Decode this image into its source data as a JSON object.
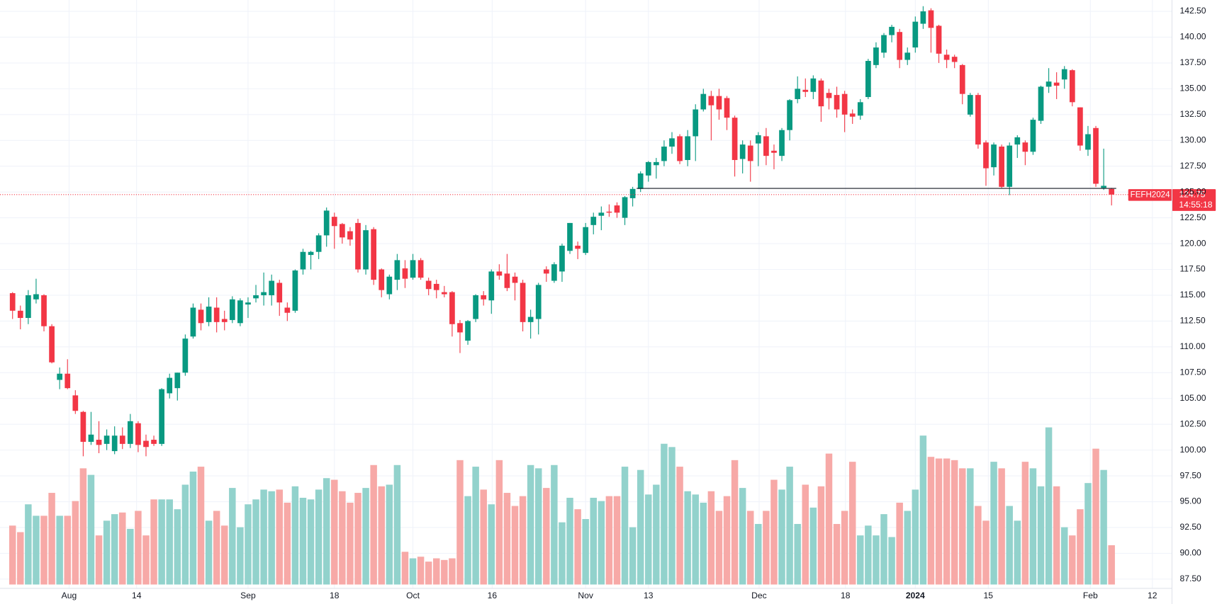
{
  "chart_data": {
    "type": "candlestick",
    "symbol": "FEFH2024",
    "last_price": 124.75,
    "countdown": "14:55:18",
    "up_color": "#089981",
    "down_color": "#f23645",
    "volume_up_color": "#92d2cc",
    "volume_down_color": "#f7a9a7",
    "grid": true,
    "open": [
      115.2,
      113.5,
      112.8,
      114.6,
      115,
      112,
      106.8,
      107.4,
      105.3,
      103.7,
      100.8,
      101,
      100.6,
      99.9,
      101.4,
      100.6,
      102.6,
      100.9,
      101,
      100.6,
      105.5,
      106,
      107.5,
      111,
      113.6,
      112.4,
      113.8,
      112.7,
      112.6,
      112.3,
      114.1,
      114.7,
      115,
      115,
      116.2,
      113.8,
      113.5,
      117.5,
      118.9,
      119.2,
      120.8,
      122.6,
      121.9,
      121.2,
      122,
      117.5,
      121.4,
      117.5,
      115.1,
      116.5,
      117.6,
      116.7,
      118.4,
      116.4,
      116.1,
      115.3,
      115.3,
      112.3,
      110.6,
      112.7,
      115,
      114.5,
      117.3,
      117.1,
      116.8,
      116.2,
      112.4,
      112.7,
      117.5,
      116.4,
      117.3,
      119.3,
      119.8,
      119.1,
      121.8,
      122.7,
      123.1,
      123.7,
      122.5,
      124.4,
      125.3,
      126.6,
      127.6,
      128,
      129.4,
      130.4,
      128.1,
      130.4,
      133,
      134.3,
      134.3,
      134.1,
      132.2,
      128.2,
      129.5,
      129.7,
      130.4,
      129,
      128.5,
      131,
      134,
      134.9,
      134.7,
      135.8,
      134.6,
      134.4,
      134.5,
      132.6,
      132.4,
      134.2,
      137.3,
      138.5,
      140.2,
      140.5,
      137.8,
      139,
      141.3,
      142.6,
      141.1,
      138.3,
      138.1,
      137.3,
      132.5,
      134.4,
      129.8,
      127.4,
      129.4,
      125.5,
      129.6,
      129.8,
      128.9,
      131.9,
      135.2,
      135.6,
      135.9,
      136.8,
      133.2,
      129.1,
      131.2,
      125.4,
      125.3
    ],
    "high": [
      115.3,
      114,
      115.5,
      116.6,
      115.1,
      112.2,
      108,
      108.8,
      105.8,
      103.8,
      103.7,
      102.8,
      102,
      102.3,
      102.2,
      103.5,
      102.8,
      101.5,
      101.4,
      106,
      107.4,
      107.5,
      111.2,
      114.2,
      114.2,
      114.8,
      114.8,
      113.5,
      114.9,
      114.7,
      114.8,
      116,
      117.2,
      117,
      116.5,
      114.3,
      117.5,
      119.5,
      119.3,
      121,
      123.5,
      123,
      122,
      121.6,
      122.4,
      121.8,
      121.6,
      117.6,
      117,
      119,
      118.4,
      119,
      118.6,
      116.7,
      116.5,
      115.9,
      115.4,
      112.6,
      112.6,
      115.1,
      115.4,
      117.5,
      118,
      119,
      117.2,
      116.5,
      113.6,
      116.2,
      117.8,
      118.2,
      120,
      122,
      120.2,
      122,
      123,
      123.6,
      123.8,
      124,
      124.6,
      125.5,
      127,
      128,
      128.3,
      130,
      130.8,
      130.6,
      131,
      133.5,
      135,
      134.8,
      135,
      134.3,
      132.4,
      130,
      130,
      130.8,
      131.2,
      129.6,
      131.2,
      134,
      136.2,
      136,
      136.3,
      136,
      135,
      135.2,
      134.8,
      133,
      134,
      137.9,
      139.5,
      140.4,
      141.2,
      140.8,
      139,
      142,
      143,
      142.8,
      141.2,
      138.8,
      138.3,
      137.4,
      134.6,
      134.6,
      130,
      129.8,
      129.6,
      129.8,
      130.5,
      130,
      132.2,
      135.3,
      137,
      136.6,
      137.2,
      136.9,
      133.2,
      131.4,
      131.4,
      129.2,
      125.4
    ],
    "low": [
      112.7,
      111.7,
      112.2,
      114.2,
      111.5,
      108.4,
      105.9,
      105.9,
      103.5,
      99.4,
      100.5,
      99.7,
      100,
      99.6,
      100.1,
      100.2,
      99.8,
      99.4,
      100.4,
      100.4,
      105,
      104.8,
      107.2,
      110.8,
      111.6,
      112,
      111.4,
      111.6,
      112.3,
      112,
      112.8,
      114.3,
      114,
      114,
      113,
      112.5,
      113.3,
      117,
      117.5,
      118.5,
      119.7,
      119.5,
      120,
      119.8,
      117.2,
      117,
      116,
      114.8,
      114.6,
      115.5,
      115.7,
      116.5,
      116.5,
      115,
      114.7,
      114.8,
      111,
      109.4,
      110.2,
      112.4,
      114,
      113.2,
      116.5,
      115.4,
      114.5,
      111.5,
      110.8,
      111.2,
      116.3,
      116.2,
      116.3,
      119,
      118.5,
      118.9,
      120.9,
      121.3,
      122.6,
      122.5,
      121.8,
      123.6,
      125,
      126,
      126.3,
      127.5,
      128.7,
      127.7,
      127.5,
      128,
      132.8,
      130,
      132,
      131,
      126.5,
      126.8,
      126,
      127.5,
      127.6,
      127.2,
      128,
      130,
      133.6,
      134.2,
      134,
      131.8,
      133,
      132.2,
      130.8,
      131.6,
      132,
      134,
      137,
      138,
      139.5,
      137,
      137.3,
      138.5,
      140.8,
      138.5,
      137.5,
      137,
      137,
      133.5,
      132.3,
      129.2,
      125.6,
      126.6,
      125.4,
      124.7,
      128.3,
      127.6,
      128.6,
      131.6,
      134.6,
      134,
      135,
      133.3,
      129,
      128.5,
      125.5,
      125.2,
      123.7
    ],
    "close": [
      113.5,
      112.8,
      115,
      115.1,
      112,
      108.5,
      107.4,
      106,
      103.8,
      100.8,
      101.5,
      100.5,
      101.4,
      101.4,
      100.6,
      102.8,
      100.5,
      100.3,
      100.6,
      105.9,
      107,
      107.5,
      110.8,
      113.8,
      112.3,
      113.9,
      112.4,
      112.4,
      114.6,
      114.5,
      114.3,
      115,
      115.3,
      116.4,
      114.3,
      113.3,
      117.4,
      119.2,
      119.2,
      120.8,
      123.2,
      121.7,
      120.6,
      120.4,
      117.5,
      121.3,
      116.5,
      115.5,
      116.8,
      118.4,
      116.6,
      118.4,
      116.7,
      115.6,
      115.5,
      115.1,
      112.2,
      111.4,
      112.5,
      115,
      114.6,
      117.3,
      116.9,
      115.7,
      116.2,
      112.4,
      112.9,
      116,
      117.1,
      118,
      119.8,
      122,
      119.5,
      121.6,
      122.6,
      123,
      123,
      123,
      124.5,
      125.3,
      126.8,
      127.9,
      127.9,
      129.4,
      130.2,
      128,
      130.4,
      133,
      134.5,
      133.4,
      133,
      132.2,
      128.1,
      129.6,
      128,
      130.5,
      128.5,
      128.8,
      131,
      133.9,
      135,
      134.7,
      136,
      133.3,
      134.1,
      133,
      132.5,
      132.3,
      133.7,
      137.7,
      139,
      140.2,
      141,
      137.8,
      138.5,
      141.5,
      142.5,
      140.9,
      138.4,
      137.8,
      137.6,
      134.5,
      134.4,
      129.6,
      127.3,
      129.6,
      125.5,
      129.5,
      130.3,
      128.9,
      132,
      135.2,
      135.7,
      135.3,
      136.9,
      133.7,
      129.5,
      130.6,
      125.8,
      125.6,
      124.75
    ],
    "volume": [
      36,
      32,
      49,
      42,
      42,
      56,
      42,
      42,
      51,
      71,
      67,
      30,
      39,
      43,
      44,
      34,
      45,
      30,
      52,
      52,
      52,
      46,
      61,
      69,
      72,
      39,
      45,
      36,
      59,
      35,
      49,
      52,
      58,
      57,
      58,
      50,
      60,
      53,
      52,
      58,
      65,
      64,
      57,
      50,
      56,
      59,
      73,
      60,
      61,
      73,
      20,
      16,
      17,
      14,
      16,
      15,
      16,
      76,
      54,
      72,
      58,
      49,
      76,
      56,
      48,
      54,
      73,
      71,
      59,
      73,
      38,
      53,
      46,
      40,
      53,
      51,
      54,
      54,
      72,
      35,
      70,
      55,
      61,
      86,
      84,
      72,
      57,
      55,
      50,
      57,
      45,
      54,
      76,
      59,
      45,
      37,
      45,
      64,
      58,
      72,
      37,
      61,
      47,
      60,
      80,
      37,
      45,
      75,
      30,
      36,
      30,
      43,
      29,
      50,
      45,
      58,
      91,
      78,
      77,
      77,
      76,
      71,
      71,
      48,
      39,
      75,
      71,
      48,
      39,
      75,
      71,
      60,
      96,
      60,
      35,
      30,
      46,
      62,
      83,
      70,
      24
    ],
    "vlim": [
      0,
      100
    ],
    "support_line": {
      "value": 125.35,
      "start": 80,
      "end": 140
    },
    "xlim": [
      -1.6,
      147.7
    ],
    "xticks": [
      {
        "value": 7.2,
        "label": "Aug"
      },
      {
        "value": 15.8,
        "label": "14"
      },
      {
        "value": 30,
        "label": "Sep"
      },
      {
        "value": 41,
        "label": "18"
      },
      {
        "value": 51,
        "label": "Oct"
      },
      {
        "value": 61.1,
        "label": "16"
      },
      {
        "value": 73,
        "label": "Nov"
      },
      {
        "value": 81,
        "label": "13"
      },
      {
        "value": 95.1,
        "label": "Dec"
      },
      {
        "value": 106.1,
        "label": "18"
      },
      {
        "value": 115,
        "label": "2024"
      },
      {
        "value": 124.3,
        "label": "15"
      },
      {
        "value": 137.3,
        "label": "Feb"
      },
      {
        "value": 145.2,
        "label": "12"
      }
    ],
    "ylim": [
      86.6,
      143.6
    ],
    "yticks": [
      {
        "value": 87.5,
        "label": "87.50"
      },
      {
        "value": 90,
        "label": "90.00"
      },
      {
        "value": 92.5,
        "label": "92.50"
      },
      {
        "value": 95,
        "label": "95.00"
      },
      {
        "value": 97.5,
        "label": "97.50"
      },
      {
        "value": 100,
        "label": "100.00"
      },
      {
        "value": 102.5,
        "label": "102.50"
      },
      {
        "value": 105,
        "label": "105.00"
      },
      {
        "value": 107.5,
        "label": "107.50"
      },
      {
        "value": 110,
        "label": "110.00"
      },
      {
        "value": 112.5,
        "label": "112.50"
      },
      {
        "value": 115,
        "label": "115.00"
      },
      {
        "value": 117.5,
        "label": "117.50"
      },
      {
        "value": 120,
        "label": "120.00"
      },
      {
        "value": 122.5,
        "label": "122.50"
      },
      {
        "value": 125,
        "label": "125.00"
      },
      {
        "value": 127.5,
        "label": "127.50"
      },
      {
        "value": 130,
        "label": "130.00"
      },
      {
        "value": 132.5,
        "label": "132.50"
      },
      {
        "value": 135,
        "label": "135.00"
      },
      {
        "value": 137.5,
        "label": "137.50"
      },
      {
        "value": 140,
        "label": "140.00"
      },
      {
        "value": 142.5,
        "label": "142.50"
      }
    ]
  }
}
